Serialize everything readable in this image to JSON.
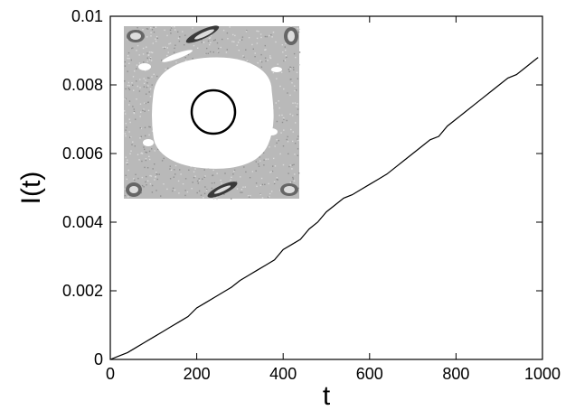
{
  "chart_data": {
    "type": "line",
    "title": "",
    "xlabel": "t",
    "ylabel": "I(t)",
    "xlim": [
      0,
      1000
    ],
    "ylim": [
      0,
      0.01
    ],
    "grid": false,
    "x_ticks": [
      "0",
      "200",
      "400",
      "600",
      "800",
      "1000"
    ],
    "y_ticks": [
      "0",
      "0.002",
      "0.004",
      "0.006",
      "0.008",
      "0.01"
    ],
    "series": [
      {
        "color": "#000000",
        "x": [
          0,
          20,
          40,
          60,
          80,
          100,
          120,
          140,
          160,
          180,
          200,
          220,
          240,
          260,
          280,
          300,
          320,
          340,
          360,
          380,
          400,
          420,
          440,
          460,
          480,
          500,
          520,
          540,
          560,
          580,
          600,
          620,
          640,
          660,
          680,
          700,
          720,
          740,
          760,
          780,
          800,
          820,
          840,
          860,
          880,
          900,
          920,
          940,
          960,
          980,
          990
        ],
        "y": [
          0.0,
          0.0001,
          0.0002,
          0.00035,
          0.0005,
          0.00065,
          0.0008,
          0.00095,
          0.0011,
          0.00125,
          0.0015,
          0.00165,
          0.0018,
          0.00195,
          0.0021,
          0.0023,
          0.00245,
          0.0026,
          0.00275,
          0.0029,
          0.0032,
          0.00335,
          0.0035,
          0.0038,
          0.004,
          0.0043,
          0.0045,
          0.0047,
          0.0048,
          0.00495,
          0.0051,
          0.00525,
          0.0054,
          0.0056,
          0.0058,
          0.006,
          0.0062,
          0.0064,
          0.0065,
          0.0068,
          0.007,
          0.0072,
          0.0074,
          0.0076,
          0.0078,
          0.008,
          0.0082,
          0.0083,
          0.0085,
          0.0087,
          0.0088
        ]
      }
    ],
    "inset": {
      "description_kind": "phase-space image with circle",
      "circle_color": "#000000"
    }
  }
}
